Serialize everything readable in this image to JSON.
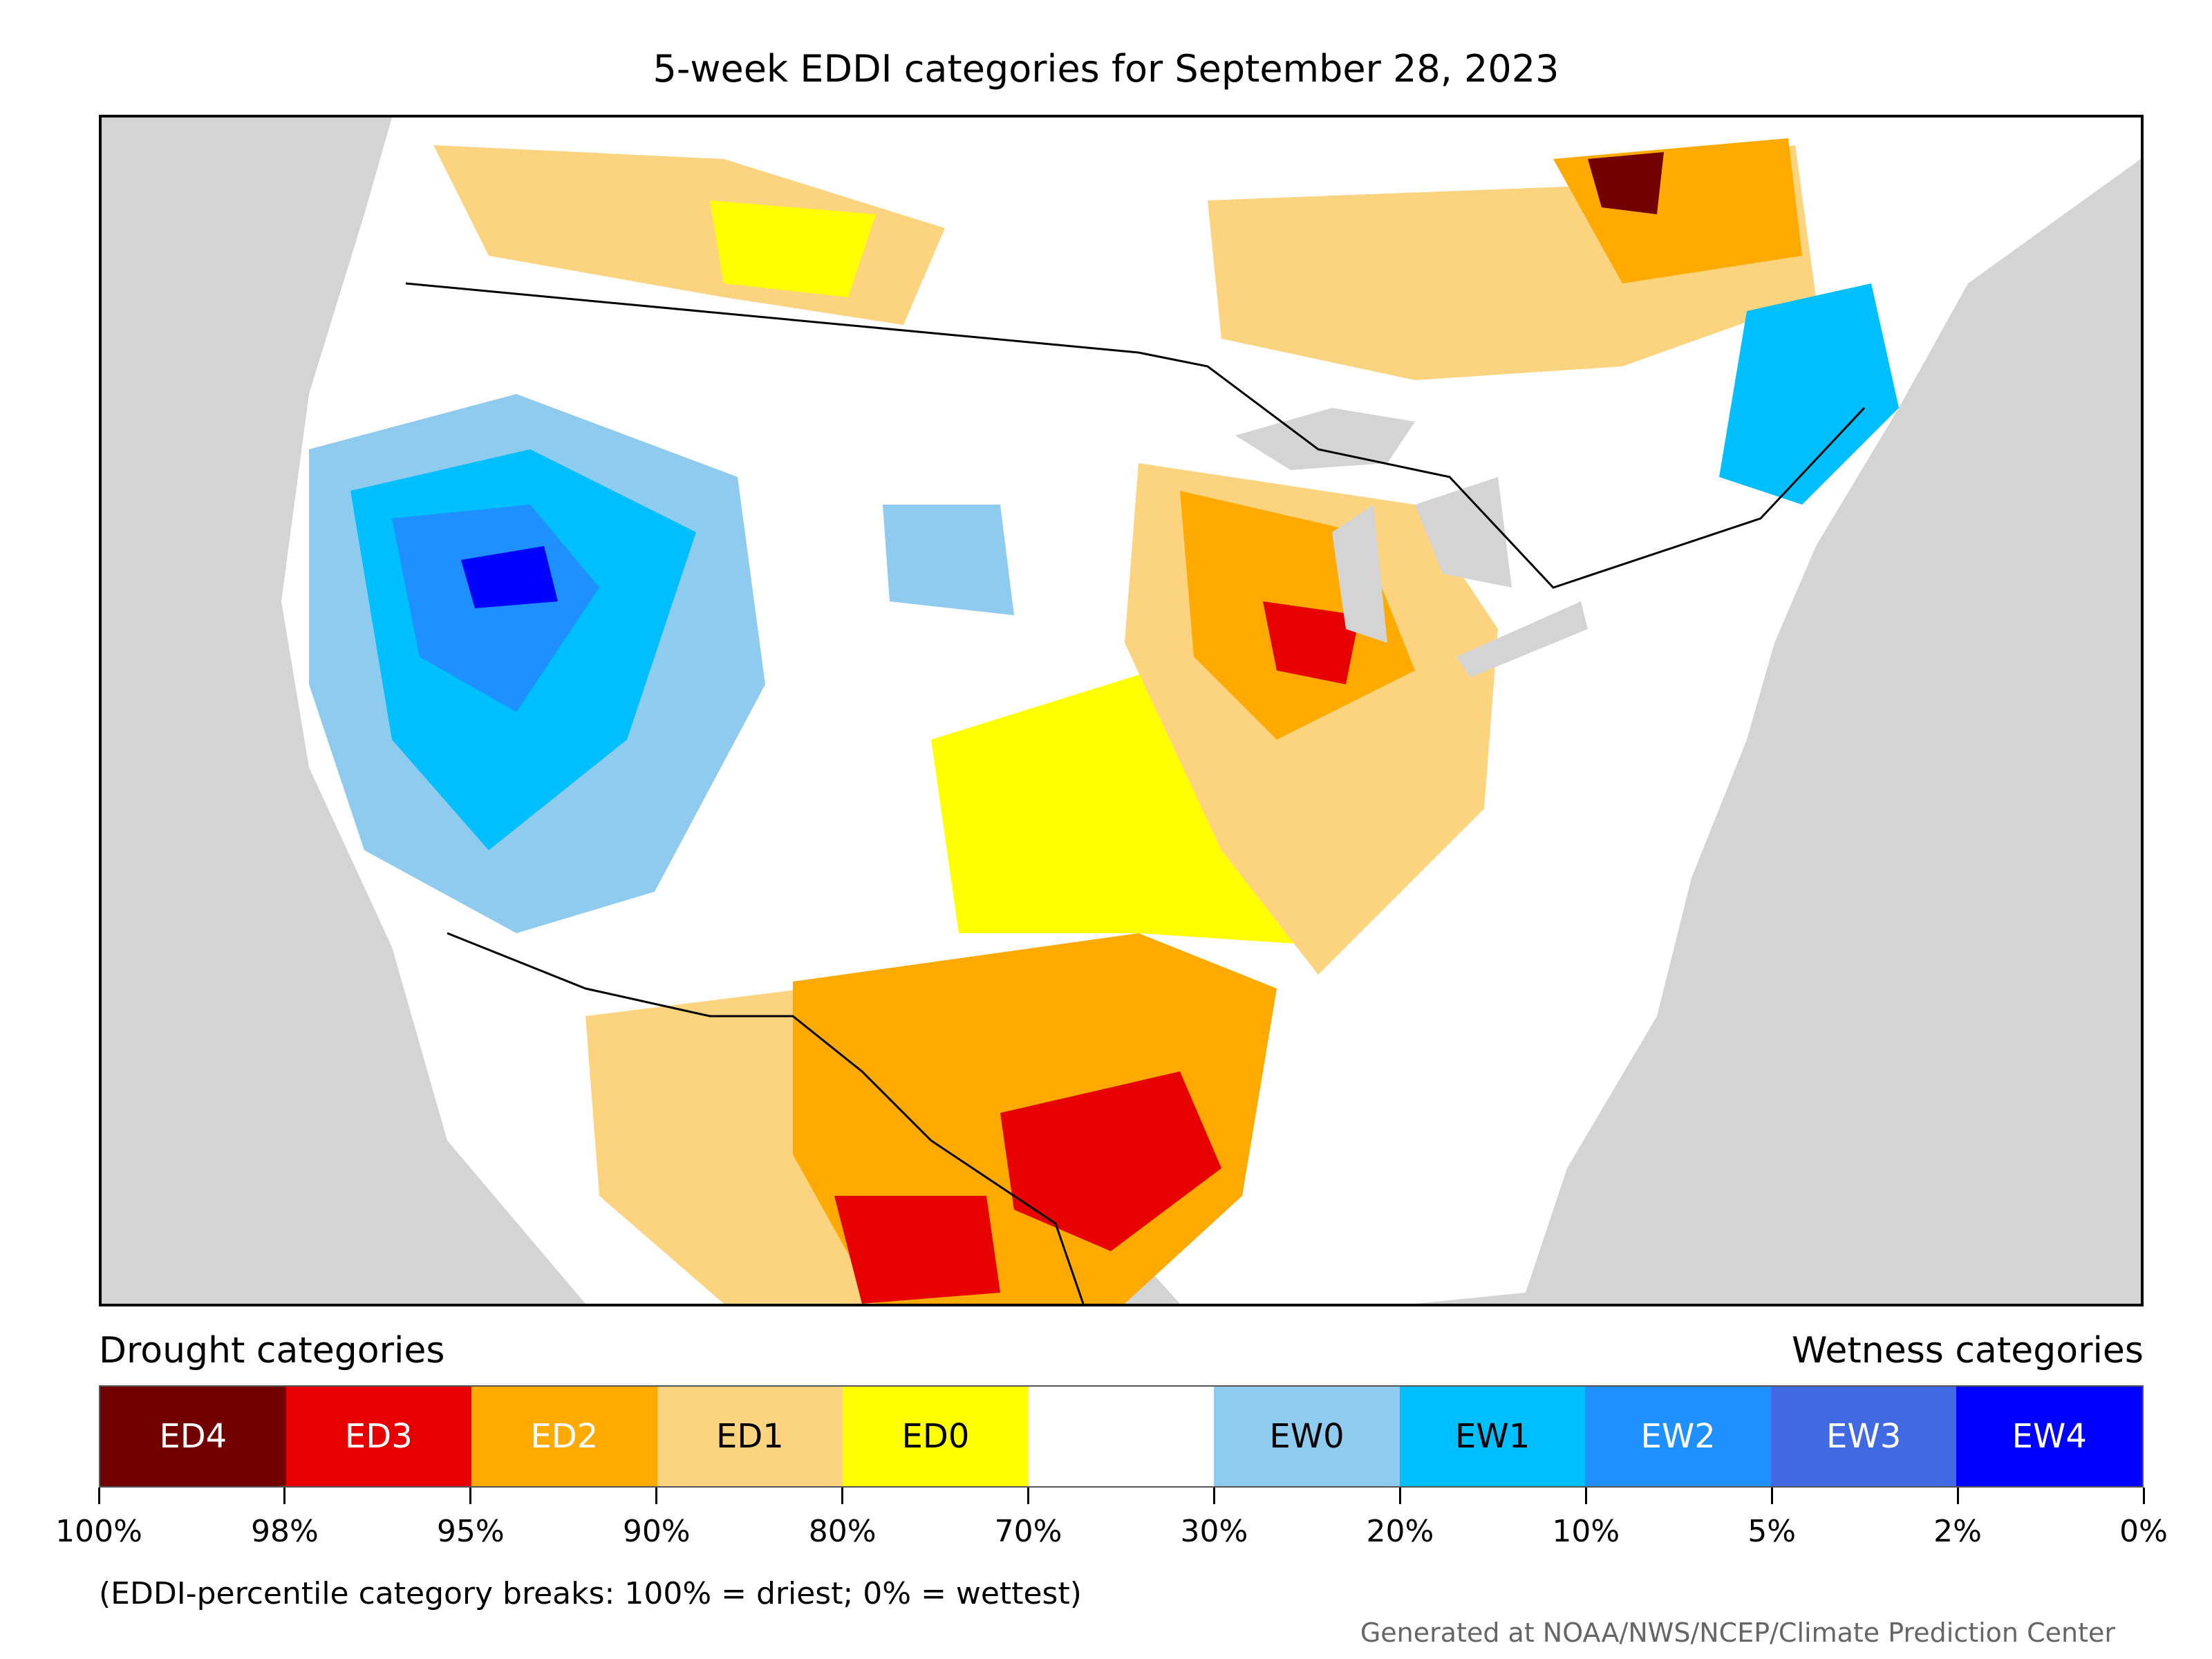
{
  "title": "5-week EDDI categories for September 28, 2023",
  "drought_heading": "Drought categories",
  "wetness_heading": "Wetness categories",
  "legend": [
    {
      "label": "ED4",
      "color": "#730000",
      "text_color": "#ffffff"
    },
    {
      "label": "ED3",
      "color": "#e60000",
      "text_color": "#ffffff"
    },
    {
      "label": "ED2",
      "color": "#ffaa00",
      "text_color": "#ffffff"
    },
    {
      "label": "ED1",
      "color": "#fcd37f",
      "text_color": "#000000"
    },
    {
      "label": "ED0",
      "color": "#ffff00",
      "text_color": "#000000"
    },
    {
      "label": "",
      "color": "#ffffff",
      "text_color": "#000000"
    },
    {
      "label": "EW0",
      "color": "#8ecbef",
      "text_color": "#000000"
    },
    {
      "label": "EW1",
      "color": "#00bfff",
      "text_color": "#000000"
    },
    {
      "label": "EW2",
      "color": "#1e90ff",
      "text_color": "#ffffff"
    },
    {
      "label": "EW3",
      "color": "#4169e1",
      "text_color": "#ffffff"
    },
    {
      "label": "EW4",
      "color": "#0000ff",
      "text_color": "#ffffff"
    }
  ],
  "tick_labels": [
    "100%",
    "98%",
    "95%",
    "90%",
    "80%",
    "70%",
    "30%",
    "20%",
    "10%",
    "5%",
    "2%",
    "0%"
  ],
  "note": "(EDDI-percentile category breaks: 100% = driest; 0% = wettest)",
  "credit": "Generated at NOAA/NWS/NCEP/Climate Prediction Center"
}
